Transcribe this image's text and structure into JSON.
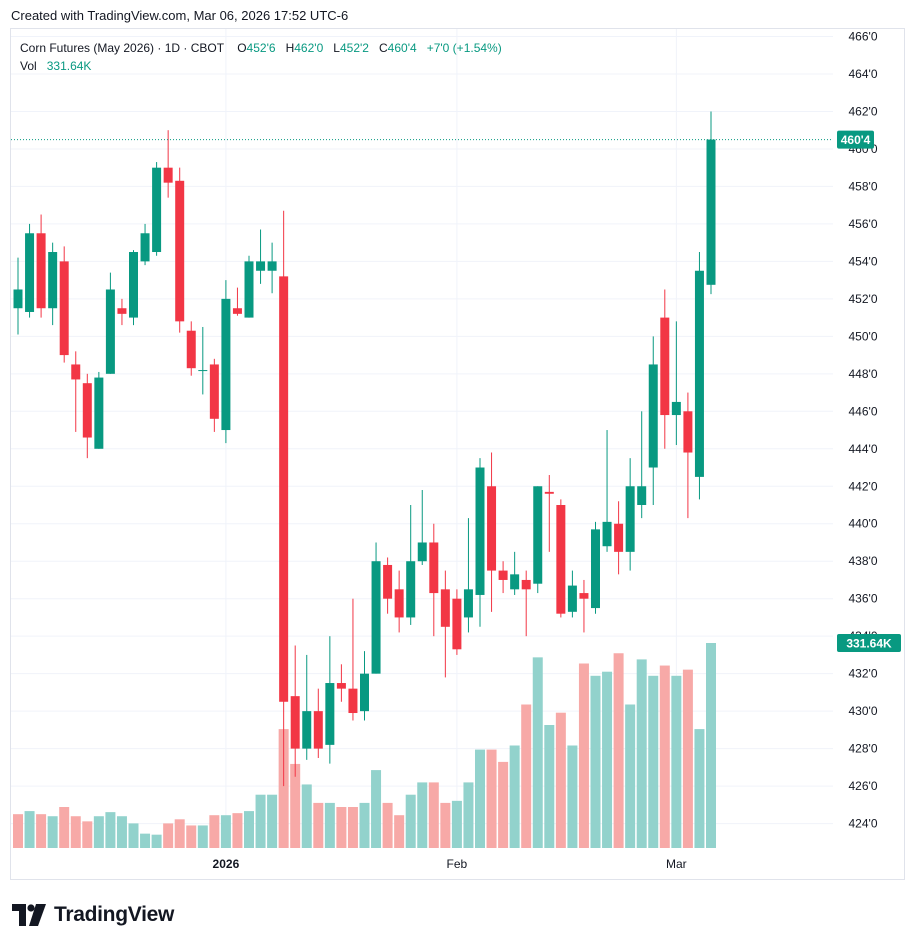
{
  "credit": "Created with TradingView.com, Mar 06, 2026 17:52 UTC-6",
  "legend": {
    "title": "Corn Futures (May 2026) · 1D · CBOT",
    "o_label": "O",
    "o_value": "452'6",
    "h_label": "H",
    "h_value": "462'0",
    "l_label": "L",
    "l_value": "452'2",
    "c_label": "C",
    "c_value": "460'4",
    "change": "+7'0 (+1.54%)",
    "vol_label": "Vol",
    "vol_value": "331.64K"
  },
  "logo_text": "TradingView",
  "colors": {
    "up": "#089981",
    "down": "#f23645",
    "up_vol": "#92d2cc",
    "down_vol": "#f7a9a7",
    "grid": "#f0f3fa",
    "text": "#131722"
  },
  "chart_data": {
    "type": "candlestick",
    "title": "Corn Futures (May 2026) · 1D · CBOT",
    "y_ticks": [
      "466'0",
      "464'0",
      "462'0",
      "460'0",
      "458'0",
      "456'0",
      "454'0",
      "452'0",
      "450'0",
      "448'0",
      "446'0",
      "444'0",
      "442'0",
      "440'0",
      "438'0",
      "436'0",
      "434'0",
      "432'0",
      "430'0",
      "428'0",
      "426'0",
      "424'0"
    ],
    "y_range": [
      422.75,
      466.5
    ],
    "x_labels": [
      {
        "label": "2026",
        "index": 18
      },
      {
        "label": "Feb",
        "index": 38
      },
      {
        "label": "Mar",
        "index": 57
      }
    ],
    "last_price_label": "460'4",
    "last_price": 460.5,
    "last_volume_label": "331.64K",
    "volume_max": 331640,
    "candles": [
      {
        "o": 451.5,
        "h": 454.2,
        "l": 450.1,
        "c": 452.5
      },
      {
        "o": 451.3,
        "h": 456.0,
        "l": 451.0,
        "c": 455.5
      },
      {
        "o": 455.5,
        "h": 456.5,
        "l": 451.0,
        "c": 451.5
      },
      {
        "o": 451.5,
        "h": 455.0,
        "l": 450.6,
        "c": 454.5
      },
      {
        "o": 454.0,
        "h": 454.8,
        "l": 448.6,
        "c": 449.0
      },
      {
        "o": 448.5,
        "h": 449.2,
        "l": 444.9,
        "c": 447.7
      },
      {
        "o": 447.5,
        "h": 448.0,
        "l": 443.5,
        "c": 444.6
      },
      {
        "o": 444.0,
        "h": 448.1,
        "l": 444.0,
        "c": 447.8
      },
      {
        "o": 448.0,
        "h": 453.4,
        "l": 448.0,
        "c": 452.5
      },
      {
        "o": 451.5,
        "h": 452.0,
        "l": 450.6,
        "c": 451.2
      },
      {
        "o": 451.0,
        "h": 454.6,
        "l": 450.6,
        "c": 454.5
      },
      {
        "o": 454.0,
        "h": 456.0,
        "l": 453.8,
        "c": 455.5
      },
      {
        "o": 454.5,
        "h": 459.3,
        "l": 454.3,
        "c": 459.0
      },
      {
        "o": 459.0,
        "h": 461.0,
        "l": 457.4,
        "c": 458.2
      },
      {
        "o": 458.3,
        "h": 459.0,
        "l": 450.2,
        "c": 450.8
      },
      {
        "o": 450.3,
        "h": 450.8,
        "l": 447.9,
        "c": 448.3
      },
      {
        "o": 448.2,
        "h": 450.5,
        "l": 446.9,
        "c": 448.2
      },
      {
        "o": 448.5,
        "h": 448.8,
        "l": 444.9,
        "c": 445.6
      },
      {
        "o": 445.0,
        "h": 453.0,
        "l": 444.3,
        "c": 452.0
      },
      {
        "o": 451.5,
        "h": 452.6,
        "l": 451.1,
        "c": 451.2
      },
      {
        "o": 451.0,
        "h": 454.3,
        "l": 451.0,
        "c": 454.0
      },
      {
        "o": 453.5,
        "h": 455.7,
        "l": 452.8,
        "c": 454.0
      },
      {
        "o": 453.5,
        "h": 455.0,
        "l": 452.3,
        "c": 454.0
      },
      {
        "o": 453.2,
        "h": 456.7,
        "l": 426.0,
        "c": 430.5
      },
      {
        "o": 430.8,
        "h": 433.5,
        "l": 426.5,
        "c": 428.0
      },
      {
        "o": 428.0,
        "h": 433.0,
        "l": 427.4,
        "c": 430.0
      },
      {
        "o": 430.0,
        "h": 431.2,
        "l": 427.5,
        "c": 428.0
      },
      {
        "o": 428.2,
        "h": 434.0,
        "l": 427.2,
        "c": 431.5
      },
      {
        "o": 431.5,
        "h": 432.5,
        "l": 430.5,
        "c": 431.2
      },
      {
        "o": 431.2,
        "h": 436.0,
        "l": 429.5,
        "c": 429.9
      },
      {
        "o": 430.0,
        "h": 433.2,
        "l": 429.5,
        "c": 432.0
      },
      {
        "o": 432.0,
        "h": 439.0,
        "l": 432.0,
        "c": 438.0
      },
      {
        "o": 437.8,
        "h": 438.2,
        "l": 435.2,
        "c": 436.0
      },
      {
        "o": 436.5,
        "h": 437.5,
        "l": 434.2,
        "c": 435.0
      },
      {
        "o": 435.0,
        "h": 441.0,
        "l": 434.6,
        "c": 438.0
      },
      {
        "o": 438.0,
        "h": 441.8,
        "l": 437.8,
        "c": 439.0
      },
      {
        "o": 439.0,
        "h": 440.0,
        "l": 434.0,
        "c": 436.3
      },
      {
        "o": 436.5,
        "h": 437.5,
        "l": 431.8,
        "c": 434.5
      },
      {
        "o": 436.0,
        "h": 436.5,
        "l": 433.0,
        "c": 433.3
      },
      {
        "o": 435.0,
        "h": 440.3,
        "l": 434.2,
        "c": 436.5
      },
      {
        "o": 436.2,
        "h": 443.5,
        "l": 434.5,
        "c": 443.0
      },
      {
        "o": 442.0,
        "h": 443.8,
        "l": 435.3,
        "c": 437.5
      },
      {
        "o": 437.5,
        "h": 438.0,
        "l": 436.3,
        "c": 437.0
      },
      {
        "o": 436.5,
        "h": 438.5,
        "l": 436.2,
        "c": 437.3
      },
      {
        "o": 437.0,
        "h": 437.5,
        "l": 434.0,
        "c": 436.5
      },
      {
        "o": 436.8,
        "h": 442.0,
        "l": 436.3,
        "c": 442.0
      },
      {
        "o": 441.7,
        "h": 442.6,
        "l": 438.5,
        "c": 441.6
      },
      {
        "o": 441.0,
        "h": 441.3,
        "l": 435.0,
        "c": 435.2
      },
      {
        "o": 435.3,
        "h": 437.5,
        "l": 435.0,
        "c": 436.7
      },
      {
        "o": 436.3,
        "h": 437.0,
        "l": 434.2,
        "c": 436.0
      },
      {
        "o": 435.5,
        "h": 440.1,
        "l": 435.2,
        "c": 439.7
      },
      {
        "o": 438.8,
        "h": 445.0,
        "l": 438.5,
        "c": 440.1
      },
      {
        "o": 440.0,
        "h": 441.2,
        "l": 437.3,
        "c": 438.5
      },
      {
        "o": 438.5,
        "h": 443.5,
        "l": 437.5,
        "c": 442.0
      },
      {
        "o": 441.0,
        "h": 446.0,
        "l": 440.3,
        "c": 442.0
      },
      {
        "o": 443.0,
        "h": 450.0,
        "l": 441.0,
        "c": 448.5
      },
      {
        "o": 451.0,
        "h": 452.5,
        "l": 444.0,
        "c": 445.8
      },
      {
        "o": 445.8,
        "h": 450.8,
        "l": 444.2,
        "c": 446.5
      },
      {
        "o": 446.0,
        "h": 447.0,
        "l": 440.3,
        "c": 443.8
      },
      {
        "o": 442.5,
        "h": 454.5,
        "l": 441.3,
        "c": 453.5
      },
      {
        "o": 452.75,
        "h": 462.0,
        "l": 452.25,
        "c": 460.5
      }
    ],
    "volume": [
      {
        "v": 0.165,
        "up": false
      },
      {
        "v": 0.18,
        "up": true
      },
      {
        "v": 0.165,
        "up": false
      },
      {
        "v": 0.155,
        "up": true
      },
      {
        "v": 0.2,
        "up": false
      },
      {
        "v": 0.155,
        "up": false
      },
      {
        "v": 0.13,
        "up": false
      },
      {
        "v": 0.155,
        "up": true
      },
      {
        "v": 0.175,
        "up": true
      },
      {
        "v": 0.155,
        "up": true
      },
      {
        "v": 0.12,
        "up": true
      },
      {
        "v": 0.07,
        "up": true
      },
      {
        "v": 0.065,
        "up": true
      },
      {
        "v": 0.12,
        "up": false
      },
      {
        "v": 0.14,
        "up": false
      },
      {
        "v": 0.11,
        "up": false
      },
      {
        "v": 0.11,
        "up": true
      },
      {
        "v": 0.16,
        "up": false
      },
      {
        "v": 0.16,
        "up": true
      },
      {
        "v": 0.17,
        "up": false
      },
      {
        "v": 0.18,
        "up": true
      },
      {
        "v": 0.26,
        "up": true
      },
      {
        "v": 0.26,
        "up": true
      },
      {
        "v": 0.58,
        "up": false
      },
      {
        "v": 0.41,
        "up": false
      },
      {
        "v": 0.31,
        "up": true
      },
      {
        "v": 0.22,
        "up": false
      },
      {
        "v": 0.22,
        "up": true
      },
      {
        "v": 0.2,
        "up": false
      },
      {
        "v": 0.2,
        "up": false
      },
      {
        "v": 0.22,
        "up": true
      },
      {
        "v": 0.38,
        "up": true
      },
      {
        "v": 0.22,
        "up": false
      },
      {
        "v": 0.16,
        "up": false
      },
      {
        "v": 0.26,
        "up": true
      },
      {
        "v": 0.32,
        "up": true
      },
      {
        "v": 0.32,
        "up": false
      },
      {
        "v": 0.22,
        "up": false
      },
      {
        "v": 0.23,
        "up": true
      },
      {
        "v": 0.32,
        "up": true
      },
      {
        "v": 0.48,
        "up": true
      },
      {
        "v": 0.48,
        "up": false
      },
      {
        "v": 0.42,
        "up": false
      },
      {
        "v": 0.5,
        "up": true
      },
      {
        "v": 0.7,
        "up": false
      },
      {
        "v": 0.93,
        "up": true
      },
      {
        "v": 0.6,
        "up": true
      },
      {
        "v": 0.66,
        "up": false
      },
      {
        "v": 0.5,
        "up": true
      },
      {
        "v": 0.9,
        "up": false
      },
      {
        "v": 0.84,
        "up": true
      },
      {
        "v": 0.86,
        "up": true
      },
      {
        "v": 0.95,
        "up": false
      },
      {
        "v": 0.7,
        "up": true
      },
      {
        "v": 0.92,
        "up": true
      },
      {
        "v": 0.84,
        "up": true
      },
      {
        "v": 0.89,
        "up": false
      },
      {
        "v": 0.84,
        "up": true
      },
      {
        "v": 0.87,
        "up": false
      },
      {
        "v": 0.58,
        "up": true
      },
      {
        "v": 1.0,
        "up": true
      }
    ]
  }
}
